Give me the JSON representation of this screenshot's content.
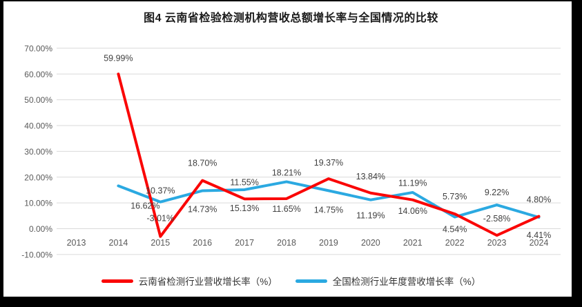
{
  "title": "图4 云南省检验检测机构营收总额增长率与全国情况的比较",
  "chart_data": {
    "type": "line",
    "categories": [
      "2013",
      "2014",
      "2015",
      "2016",
      "2017",
      "2018",
      "2019",
      "2020",
      "2021",
      "2022",
      "2023",
      "2024"
    ],
    "y_axis": {
      "min": -10,
      "max": 70,
      "step": 10,
      "tick_labels": [
        "70.00%",
        "60.00%",
        "50.00%",
        "40.00%",
        "30.00%",
        "20.00%",
        "10.00%",
        "0.00%",
        "-10.00%"
      ]
    },
    "grid": true,
    "legend_position": "bottom",
    "series": [
      {
        "name": "云南省检测行业营收增长率（%）",
        "color": "#fa0505",
        "values": [
          null,
          59.99,
          -3.01,
          18.7,
          11.55,
          11.65,
          19.37,
          13.84,
          11.19,
          5.73,
          -2.58,
          4.8
        ],
        "labels": [
          null,
          "59.99%",
          "-3.01%",
          "18.70%",
          "11.55%",
          "11.65%",
          "19.37%",
          "13.84%",
          "11.19%",
          "5.73%",
          "-2.58%",
          "4.80%"
        ],
        "label_offsets": [
          null,
          [
            0,
            -19
          ],
          [
            0,
            -22
          ],
          [
            0,
            -21
          ],
          [
            0,
            -20
          ],
          [
            0,
            19
          ],
          [
            0,
            -19
          ],
          [
            0,
            -20
          ],
          [
            0,
            -20
          ],
          [
            0,
            -21
          ],
          [
            0,
            -20
          ],
          [
            0,
            -20
          ]
        ]
      },
      {
        "name": "全国检测行业年度营收增长率（%）",
        "color": "#2ba9e1",
        "values": [
          null,
          16.62,
          10.37,
          14.73,
          15.13,
          18.21,
          14.75,
          11.19,
          14.06,
          4.54,
          9.22,
          4.41
        ],
        "labels": [
          null,
          "16.62%",
          "10.37%",
          "14.73%",
          "15.13%",
          "18.21%",
          "14.75%",
          "11.19%",
          "14.06%",
          "4.54%",
          "9.22%",
          "4.41%"
        ],
        "label_offsets": [
          null,
          [
            39,
            33
          ],
          [
            0,
            -12
          ],
          [
            0,
            31
          ],
          [
            0,
            31
          ],
          [
            0,
            -9
          ],
          [
            0,
            32
          ],
          [
            0,
            27
          ],
          [
            0,
            31
          ],
          [
            0,
            22
          ],
          [
            0,
            -14
          ],
          [
            0,
            30
          ]
        ]
      }
    ]
  }
}
